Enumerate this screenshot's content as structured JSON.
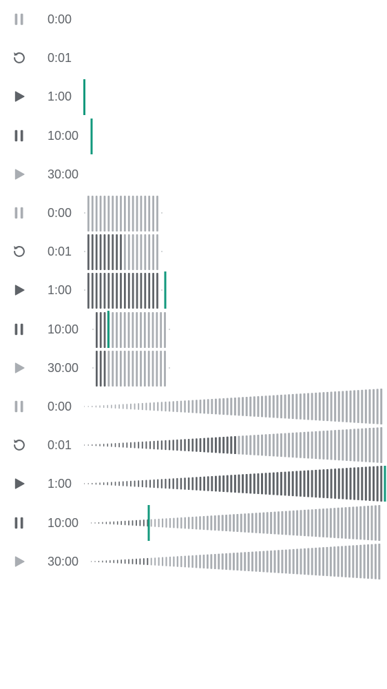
{
  "colors": {
    "played": "#5f6368",
    "unplayed": "#a9adb2",
    "cursor": "#13997d",
    "time_text": "#5f6368"
  },
  "sections": [
    {
      "name": "no-waveform",
      "waveform": "none",
      "rows": [
        {
          "icon": "pause-icon",
          "icon_state": "disabled",
          "time": "0:00",
          "progress": null
        },
        {
          "icon": "replay-icon",
          "icon_state": "active",
          "time": "0:01",
          "progress": null
        },
        {
          "icon": "play-icon",
          "icon_state": "active",
          "time": "1:00",
          "progress": 1.0
        },
        {
          "icon": "pause-icon",
          "icon_state": "active",
          "time": "10:00",
          "progress": 1.0
        },
        {
          "icon": "play-icon",
          "icon_state": "disabled",
          "time": "30:00",
          "progress": null
        }
      ]
    },
    {
      "name": "flat-waveform",
      "waveform": "flat",
      "rows": [
        {
          "icon": "pause-icon",
          "icon_state": "disabled",
          "time": "0:00",
          "progress": 0.0
        },
        {
          "icon": "replay-icon",
          "icon_state": "active",
          "time": "0:01",
          "progress": 0.52
        },
        {
          "icon": "play-icon",
          "icon_state": "active",
          "time": "1:00",
          "progress": 1.0
        },
        {
          "icon": "pause-icon",
          "icon_state": "active",
          "time": "10:00",
          "progress": 0.18
        },
        {
          "icon": "play-icon",
          "icon_state": "disabled",
          "time": "30:00",
          "progress": 0.16
        }
      ]
    },
    {
      "name": "tapered-waveform",
      "waveform": "tapered",
      "rows": [
        {
          "icon": "pause-icon",
          "icon_state": "disabled",
          "time": "0:00",
          "progress": 0.0
        },
        {
          "icon": "replay-icon",
          "icon_state": "active",
          "time": "0:01",
          "progress": 0.51
        },
        {
          "icon": "play-icon",
          "icon_state": "active",
          "time": "1:00",
          "progress": 1.0
        },
        {
          "icon": "pause-icon",
          "icon_state": "active",
          "time": "10:00",
          "progress": 0.2
        },
        {
          "icon": "play-icon",
          "icon_state": "disabled",
          "time": "30:00",
          "progress": 0.2
        }
      ]
    }
  ]
}
